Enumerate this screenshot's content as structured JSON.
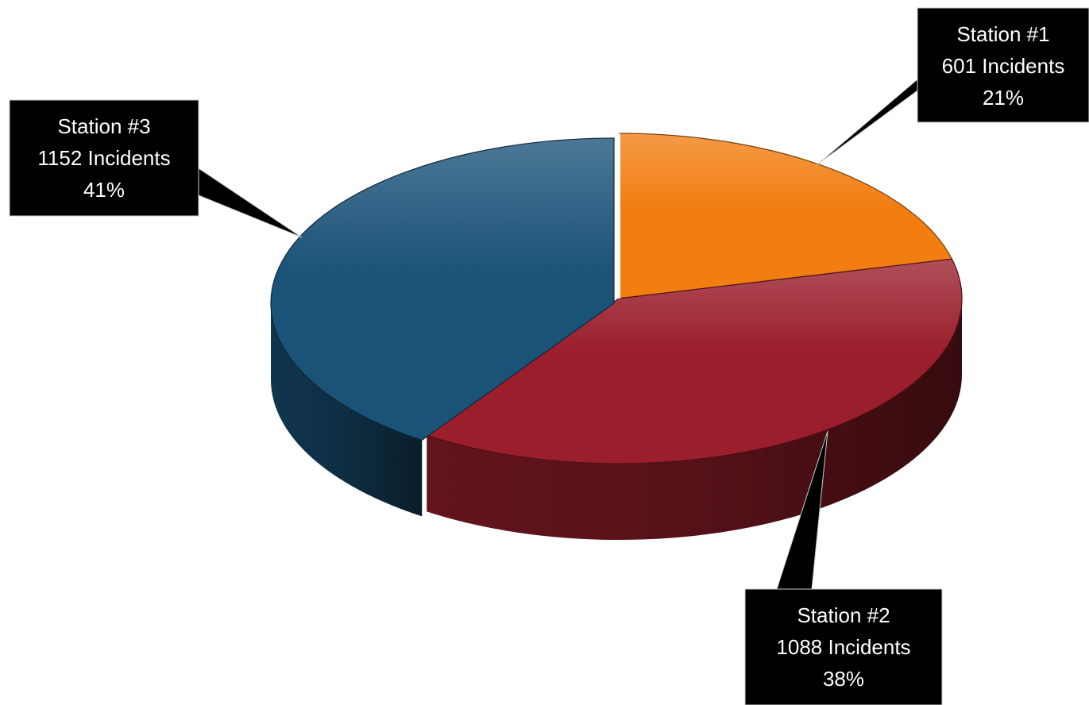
{
  "chart_data": {
    "type": "pie",
    "title": "",
    "style": "3d-tilted",
    "slices": [
      {
        "name": "Station #1",
        "value": 601,
        "percent": "21%",
        "count_label": "601 Incidents",
        "color": "#F27E12"
      },
      {
        "name": "Station #2",
        "value": 1088,
        "percent": "38%",
        "count_label": "1088 Incidents",
        "color": "#9A1E2C"
      },
      {
        "name": "Station #3",
        "value": 1152,
        "percent": "41%",
        "count_label": "1152 Incidents",
        "color": "#1A5278"
      }
    ],
    "label_style": {
      "background": "#000000",
      "text_color": "#FFFFFF"
    }
  }
}
